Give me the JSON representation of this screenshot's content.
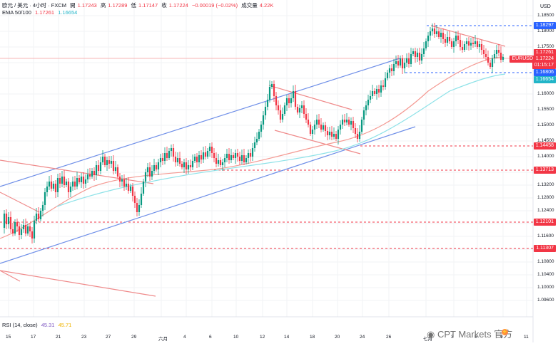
{
  "header": {
    "symbol_line": "欧元 / 美元 · 4小时 · FXCM",
    "open_label": "開",
    "open_value": "1.17243",
    "high_label": "高",
    "high_value": "1.17289",
    "low_label": "低",
    "low_value": "1.17147",
    "close_label": "收",
    "close_value": "1.17224",
    "change_value": "−0.00019 (−0.02%)",
    "volume_label": "成交量",
    "volume_value": "4.22K",
    "ema_label": "EMA 50/100",
    "ema50_value": "1.17261",
    "ema100_value": "1.16654"
  },
  "price_axis": {
    "currency": "USD",
    "ticks": [
      "1.18500",
      "1.18000",
      "1.17500",
      "1.17000",
      "1.16500",
      "1.16000",
      "1.15500",
      "1.15000",
      "1.14500",
      "1.14000",
      "1.13500",
      "1.13200",
      "1.12800",
      "1.12400",
      "1.12000",
      "1.11600",
      "1.11200",
      "1.10800",
      "1.10400",
      "1.10000",
      "1.09600"
    ]
  },
  "badges": {
    "b1": "1.18297",
    "b2": "1.17261",
    "symbol": "EURUSD",
    "price": "1.17224",
    "countdown": "01:15:17",
    "b3": "1.16806",
    "b4": "1.16654",
    "b5": "1.14458",
    "b6": "1.13713",
    "b7": "1.12101",
    "b8": "1.11307"
  },
  "time_axis": [
    "15",
    "17",
    "21",
    "23",
    "27",
    "29",
    "六月",
    "4",
    "6",
    "10",
    "12",
    "14",
    "18",
    "20",
    "24",
    "26",
    "七月",
    "3",
    "5",
    "9",
    "11"
  ],
  "rsi": {
    "label": "RSI (14, close)",
    "v1": "45.31",
    "v2": "45.71"
  },
  "watermark": "CPT Markets 官方",
  "colors": {
    "bull": "#089981",
    "bear": "#f23645",
    "channel": "#6f8fe8",
    "trend": "#ef8a8a",
    "ema50": "#f49a93",
    "ema100": "#8ee2e8"
  }
}
